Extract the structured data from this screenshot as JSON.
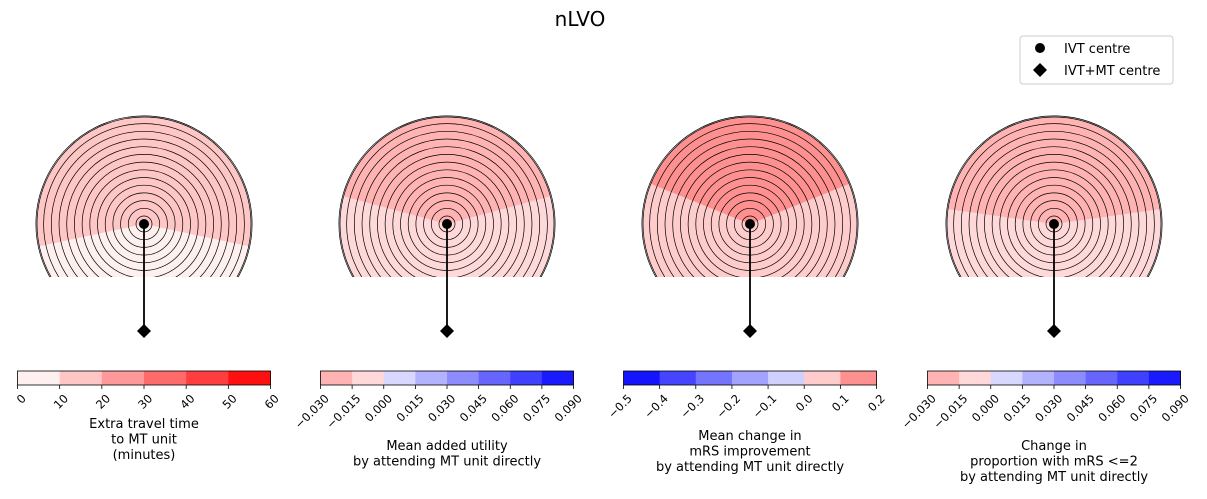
{
  "figure": {
    "title": "nLVO",
    "legend": {
      "placement": "top-right",
      "entries": [
        {
          "label": "IVT centre",
          "marker": "circle",
          "color": "#000000"
        },
        {
          "label": "IVT+MT centre",
          "marker": "diamond",
          "color": "#000000"
        }
      ]
    }
  },
  "chart_data": [
    {
      "type": "heatmap",
      "colorbar": {
        "ticks": [
          "0",
          "10",
          "20",
          "30",
          "40",
          "50",
          "60"
        ],
        "label_lines": [
          "Extra travel time",
          "to MT unit",
          "(minutes)"
        ],
        "segment_colors": [
          "#fff0f0",
          "#ffc6c6",
          "#ff9999",
          "#ff6a6a",
          "#ff3f3f",
          "#ff1010"
        ]
      },
      "map_bands": [
        "#ff1010",
        "#ff6a6a",
        "#ffc6c6",
        "#fff0f0"
      ]
    },
    {
      "type": "heatmap",
      "colorbar": {
        "ticks": [
          "−0.030",
          "−0.015",
          "0.000",
          "0.015",
          "0.030",
          "0.045",
          "0.060",
          "0.075",
          "0.090"
        ],
        "label_lines": [
          "Mean added utility",
          "by attending MT unit directly"
        ],
        "segment_colors": [
          "#ffb3b3",
          "#ffd9d9",
          "#d8d8ff",
          "#b2b2ff",
          "#8c8cff",
          "#6666ff",
          "#4040ff",
          "#1a1aff"
        ]
      },
      "map_bands": [
        "#ffb3b3",
        "#ffd9d9"
      ]
    },
    {
      "type": "heatmap",
      "colorbar": {
        "ticks": [
          "−0.5",
          "−0.4",
          "−0.3",
          "−0.2",
          "−0.1",
          "0.0",
          "0.1",
          "0.2"
        ],
        "label_lines": [
          "Mean change in",
          "mRS improvement",
          "by attending MT unit directly"
        ],
        "segment_colors": [
          "#1414ff",
          "#4545ff",
          "#7474ff",
          "#a3a3ff",
          "#d0d0ff",
          "#ffcccc",
          "#ff9090"
        ]
      },
      "map_bands": [
        "#ff9090",
        "#ffcccc"
      ]
    },
    {
      "type": "heatmap",
      "colorbar": {
        "ticks": [
          "−0.030",
          "−0.015",
          "0.000",
          "0.015",
          "0.030",
          "0.045",
          "0.060",
          "0.075",
          "0.090"
        ],
        "label_lines": [
          "Change in",
          "proportion with mRS <=2",
          "by attending MT unit directly"
        ],
        "segment_colors": [
          "#ffb3b3",
          "#ffd9d9",
          "#d8d8ff",
          "#b2b2ff",
          "#8c8cff",
          "#6666ff",
          "#4040ff",
          "#1a1aff"
        ]
      },
      "map_bands": [
        "#ffb3b3",
        "#ffd9d9"
      ]
    }
  ]
}
